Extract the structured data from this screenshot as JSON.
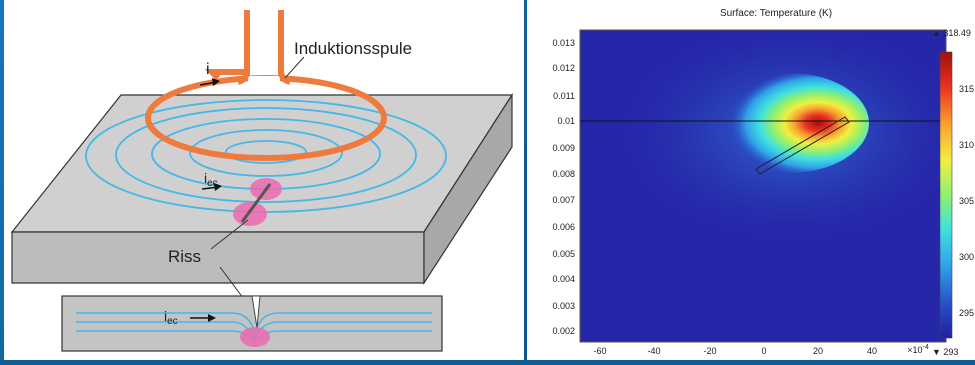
{
  "diagram": {
    "coil_label": "Induktionsspule",
    "current_label": "i",
    "eddy_label": "i",
    "eddy_sub": "ec",
    "crack_label": "Riss",
    "colors": {
      "coil": "#ee7a3d",
      "plate_top": "#d0d0d0",
      "plate_side": "#b8b8b8",
      "eddy": "#45b8e8",
      "heat": "#ec6ab0"
    }
  },
  "plot": {
    "title": "Surface: Temperature (K)",
    "y_ticks": [
      "0.013",
      "0.012",
      "0.011",
      "0.01",
      "0.009",
      "0.008",
      "0.007",
      "0.006",
      "0.005",
      "0.004",
      "0.003",
      "0.002"
    ],
    "x_ticks": [
      "-60",
      "-40",
      "-20",
      "0",
      "20",
      "40"
    ],
    "x_multiplier_base": "×10",
    "x_multiplier_exp": "-4",
    "colorbar": {
      "max_label": "▲ 318.49",
      "min_label": "▼ 293",
      "ticks": [
        "315",
        "310",
        "305",
        "300",
        "295"
      ],
      "vmin": 293,
      "vmax": 318.49
    },
    "colormap": [
      "#2020a0",
      "#2850c8",
      "#30a0e8",
      "#40e0e0",
      "#90f070",
      "#f0f040",
      "#f8a030",
      "#e83020",
      "#a01010"
    ]
  }
}
